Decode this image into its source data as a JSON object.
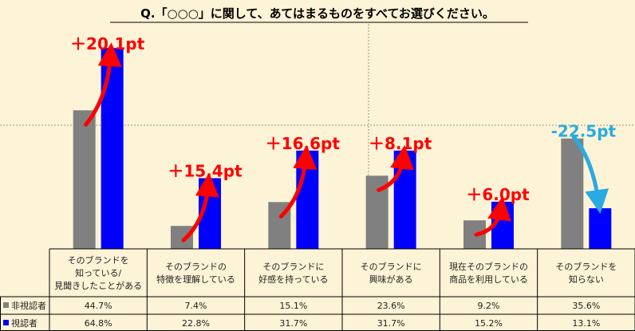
{
  "chart_data": {
    "type": "bar",
    "title": "Q.「○○○」に関して、あてはまるものをすべてお選びください。",
    "categories": [
      [
        "そのブランドを",
        "知っている/",
        "見聞きしたことがある"
      ],
      [
        "そのブランドの",
        "特徴を理解している"
      ],
      [
        "そのブランドに",
        "好感を持っている"
      ],
      [
        "そのブランドに",
        "興味がある"
      ],
      [
        "現在そのブランドの",
        "商品を利用している"
      ],
      [
        "そのブランドを",
        "知らない"
      ]
    ],
    "series": [
      {
        "name": "非視認者",
        "color": "#808080",
        "values": [
          44.7,
          7.4,
          15.1,
          23.6,
          9.2,
          35.6
        ],
        "labels": [
          "44.7%",
          "7.4%",
          "15.1%",
          "23.6%",
          "9.2%",
          "35.6%"
        ]
      },
      {
        "name": "視認者",
        "color": "#0000ff",
        "values": [
          64.8,
          22.8,
          31.7,
          31.7,
          15.2,
          13.1
        ],
        "labels": [
          "64.8%",
          "22.8%",
          "31.7%",
          "31.7%",
          "15.2%",
          "13.1%"
        ]
      }
    ],
    "annotations": [
      "＋20.1pt",
      "＋15.4pt",
      "＋16.6pt",
      "＋8.1pt",
      "＋6.0pt",
      "-22.5pt"
    ],
    "annotation_colors": [
      "#ff0000",
      "#ff0000",
      "#ff0000",
      "#ff0000",
      "#ff0000",
      "#29abe2"
    ],
    "ylim": [
      0,
      70
    ],
    "grid": "dashed center vertical and horizontal"
  }
}
